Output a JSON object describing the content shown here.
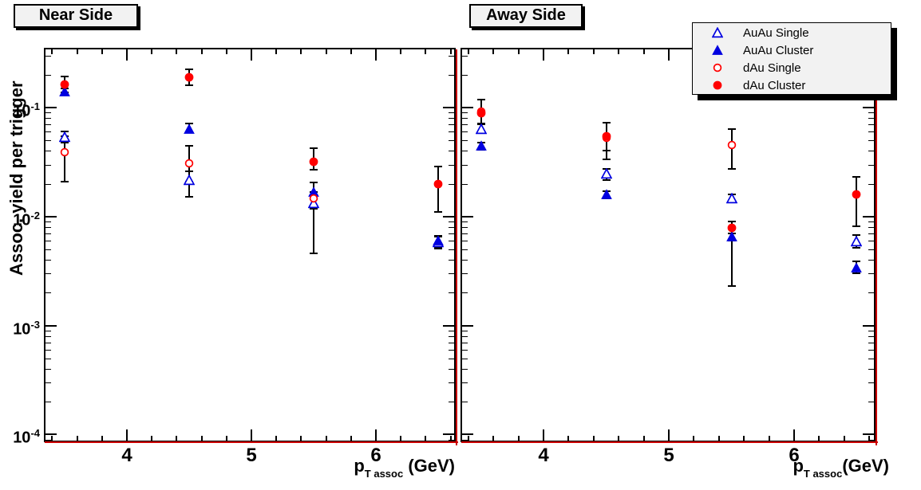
{
  "panel_titles": {
    "near": "Near Side",
    "away": "Away Side"
  },
  "axes": {
    "y_title": "Assoc. yield per trigger",
    "x_title": {
      "base": "p",
      "sub": "T assoc",
      "unit_near": " (GeV)",
      "unit_away": "(GeV)"
    },
    "x_ticks": [
      4,
      5,
      6
    ],
    "y_decades": [
      -1,
      -2,
      -3,
      -4
    ]
  },
  "legend": {
    "items": [
      {
        "label": "AuAu Single",
        "marker": "triangle-open",
        "color": "#0000e0"
      },
      {
        "label": "AuAu Cluster",
        "marker": "triangle-filled",
        "color": "#0000e0"
      },
      {
        "label": "dAu Single",
        "marker": "circle-open",
        "color": "#ff0000"
      },
      {
        "label": "dAu Cluster",
        "marker": "circle-filled",
        "color": "#ff0000"
      }
    ]
  },
  "colors": {
    "blue": "#0000e0",
    "red": "#ff0000",
    "hist_line": "#cc0000",
    "box_bg": "#f2f2f2",
    "black": "#000000"
  },
  "chart_data": [
    {
      "type": "scatter",
      "panel": "Near Side",
      "xlabel": "p_T assoc (GeV)",
      "ylabel": "Assoc. yield per trigger",
      "yscale": "log",
      "xlim": [
        3.346,
        6.628
      ],
      "ylim": [
        8.8e-05,
        0.342
      ],
      "grid": false,
      "series": [
        {
          "name": "AuAu Single",
          "marker": "triangle-open",
          "color": "#0000e0",
          "points": [
            {
              "x": 3.5,
              "y": 0.054,
              "lo": 0.048,
              "hi": 0.06
            },
            {
              "x": 4.5,
              "y": 0.0217,
              "lo": 0.0153,
              "hi": 0.026
            },
            {
              "x": 5.5,
              "y": 0.0132,
              "lo": 0.0118,
              "hi": 0.0145
            },
            {
              "x": 6.5,
              "y": 0.0058,
              "lo": 0.0051,
              "hi": 0.0065
            }
          ]
        },
        {
          "name": "AuAu Cluster",
          "marker": "triangle-filled",
          "color": "#0000e0",
          "points": [
            {
              "x": 3.5,
              "y": 0.14,
              "lo": 0.13,
              "hi": 0.151
            },
            {
              "x": 4.5,
              "y": 0.064,
              "lo": 0.059,
              "hi": 0.071
            },
            {
              "x": 5.5,
              "y": 0.0168,
              "lo": 0.015,
              "hi": 0.0204
            },
            {
              "x": 6.5,
              "y": 0.006,
              "lo": 0.0053,
              "hi": 0.0067
            }
          ]
        },
        {
          "name": "dAu Single",
          "marker": "circle-open",
          "color": "#ff0000",
          "points": [
            {
              "x": 3.5,
              "y": 0.039,
              "lo": 0.021,
              "hi": 0.0546
            },
            {
              "x": 4.5,
              "y": 0.0307,
              "lo": 0.021,
              "hi": 0.0445
            },
            {
              "x": 5.5,
              "y": 0.0148,
              "lo": 0.0046,
              "hi": 0.0168
            }
          ]
        },
        {
          "name": "dAu Cluster",
          "marker": "circle-filled",
          "color": "#ff0000",
          "points": [
            {
              "x": 3.5,
              "y": 0.163,
              "lo": 0.138,
              "hi": 0.192
            },
            {
              "x": 4.5,
              "y": 0.19,
              "lo": 0.161,
              "hi": 0.225
            },
            {
              "x": 5.5,
              "y": 0.0316,
              "lo": 0.027,
              "hi": 0.0424
            },
            {
              "x": 6.5,
              "y": 0.0199,
              "lo": 0.0111,
              "hi": 0.0286
            }
          ]
        }
      ]
    },
    {
      "type": "scatter",
      "panel": "Away Side",
      "xlabel": "p_T assoc(GeV)",
      "ylabel": "Assoc. yield per trigger",
      "yscale": "log",
      "xlim": [
        3.35,
        6.637
      ],
      "ylim": [
        8.8e-05,
        0.342
      ],
      "grid": false,
      "series": [
        {
          "name": "AuAu Single",
          "marker": "triangle-open",
          "color": "#0000e0",
          "points": [
            {
              "x": 3.5,
              "y": 0.0638,
              "lo": 0.058,
              "hi": 0.07
            },
            {
              "x": 4.5,
              "y": 0.0246,
              "lo": 0.0215,
              "hi": 0.0275
            },
            {
              "x": 5.5,
              "y": 0.0147,
              "lo": 0.0135,
              "hi": 0.016
            },
            {
              "x": 6.5,
              "y": 0.0059,
              "lo": 0.0052,
              "hi": 0.0068
            }
          ]
        },
        {
          "name": "AuAu Cluster",
          "marker": "triangle-filled",
          "color": "#0000e0",
          "points": [
            {
              "x": 3.5,
              "y": 0.0443,
              "lo": 0.0413,
              "hi": 0.0475
            },
            {
              "x": 4.5,
              "y": 0.0159,
              "lo": 0.0147,
              "hi": 0.0172
            },
            {
              "x": 5.5,
              "y": 0.0066,
              "lo": 0.006,
              "hi": 0.007
            },
            {
              "x": 6.5,
              "y": 0.0034,
              "lo": 0.003,
              "hi": 0.0039
            }
          ]
        },
        {
          "name": "dAu Single",
          "marker": "circle-open",
          "color": "#ff0000",
          "points": [
            {
              "x": 3.5,
              "y": 0.092,
              "lo": 0.0714,
              "hi": 0.118
            },
            {
              "x": 4.5,
              "y": 0.053,
              "lo": 0.0334,
              "hi": 0.0726
            },
            {
              "x": 5.5,
              "y": 0.0455,
              "lo": 0.0275,
              "hi": 0.0638
            }
          ]
        },
        {
          "name": "dAu Cluster",
          "marker": "circle-filled",
          "color": "#ff0000",
          "points": [
            {
              "x": 3.5,
              "y": 0.0894,
              "lo": 0.0714,
              "hi": 0.118
            },
            {
              "x": 4.5,
              "y": 0.0548,
              "lo": 0.04,
              "hi": 0.0726
            },
            {
              "x": 5.5,
              "y": 0.0079,
              "lo": 0.0023,
              "hi": 0.009
            },
            {
              "x": 6.5,
              "y": 0.0159,
              "lo": 0.0082,
              "hi": 0.0232
            }
          ]
        }
      ]
    }
  ]
}
